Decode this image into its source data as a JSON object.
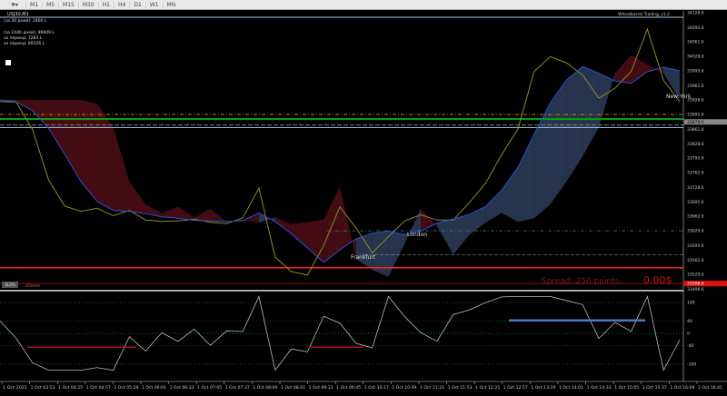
{
  "toolbar": {
    "tools_icon": "cursor-tools-icon",
    "timeframes": [
      "M1",
      "M5",
      "M15",
      "M30",
      "H1",
      "H4",
      "D1",
      "W1",
      "MN"
    ]
  },
  "chart": {
    "symbol": "USJ30,M1",
    "info_lines": [
      "(за 30 дней):   2400 L",
      "(за 1440 дней):  96609 L",
      "за период: 7283 L",
      "за период: 89326 L"
    ],
    "expert_name": "Wheelbarrel Trailing_v1.2",
    "sessions": [
      "New York",
      "London",
      "Frankfurt"
    ],
    "spread_text": "Spread: 250 points.",
    "profit_text": "0.00$",
    "bottom_label": "SL2%",
    "bottom_label2": "...nFomeo",
    "colors": {
      "price": "#8b8b2a",
      "signal": "#2b4fd8",
      "cloud_up": "#2a3a55",
      "cloud_down": "#4a0c14",
      "level_red": "#ff2020",
      "level_green": "#10a010"
    },
    "price_axis": [
      "34128.6",
      "34094.6",
      "34061.6",
      "34028.6",
      "33995.6",
      "33961.6",
      "33928.6",
      "33895.6",
      "33861.6",
      "33828.6",
      "33795.6",
      "33762.6",
      "33728.6",
      "33695.6",
      "33662.6",
      "33629.6",
      "33595.6",
      "33562.6",
      "33529.6",
      "33496.6"
    ],
    "current_price": "33878.6",
    "red_price": "33508.6",
    "price_series": [
      33929,
      33920,
      33866,
      33742,
      33690,
      33670,
      33685,
      33660,
      33680,
      33650,
      33655,
      33648,
      33660,
      33645,
      33650,
      33655,
      33731,
      33565,
      33540,
      33524,
      33600,
      33680,
      33640,
      33575,
      33620,
      33648,
      33670,
      33650,
      33658,
      33690,
      33742,
      33800,
      33866,
      33990,
      34032,
      34010,
      33990,
      33929,
      33960,
      33990,
      34095,
      33970,
      33929
    ]
  },
  "oscillator": {
    "levels": [
      "100",
      "40",
      "0",
      "-40",
      "-100"
    ]
  },
  "time_axis": [
    "1 Oct 2021",
    "1 Oct 03:53",
    "1 Oct 04:25",
    "1 Oct 04:57",
    "1 Oct 05:29",
    "1 Oct 06:01",
    "1 Oct 06:33",
    "1 Oct 07:05",
    "1 Oct 07:37",
    "1 Oct 08:09",
    "1 Oct 08:41",
    "1 Oct 09:13",
    "1 Oct 09:45",
    "1 Oct 10:17",
    "1 Oct 10:49",
    "1 Oct 11:21",
    "1 Oct 11:53",
    "1 Oct 12:25",
    "1 Oct 12:57",
    "1 Oct 13:29",
    "1 Oct 14:01",
    "1 Oct 14:33",
    "1 Oct 15:05",
    "1 Oct 15:37",
    "1 Oct 16:09",
    "1 Oct 16:41"
  ]
}
